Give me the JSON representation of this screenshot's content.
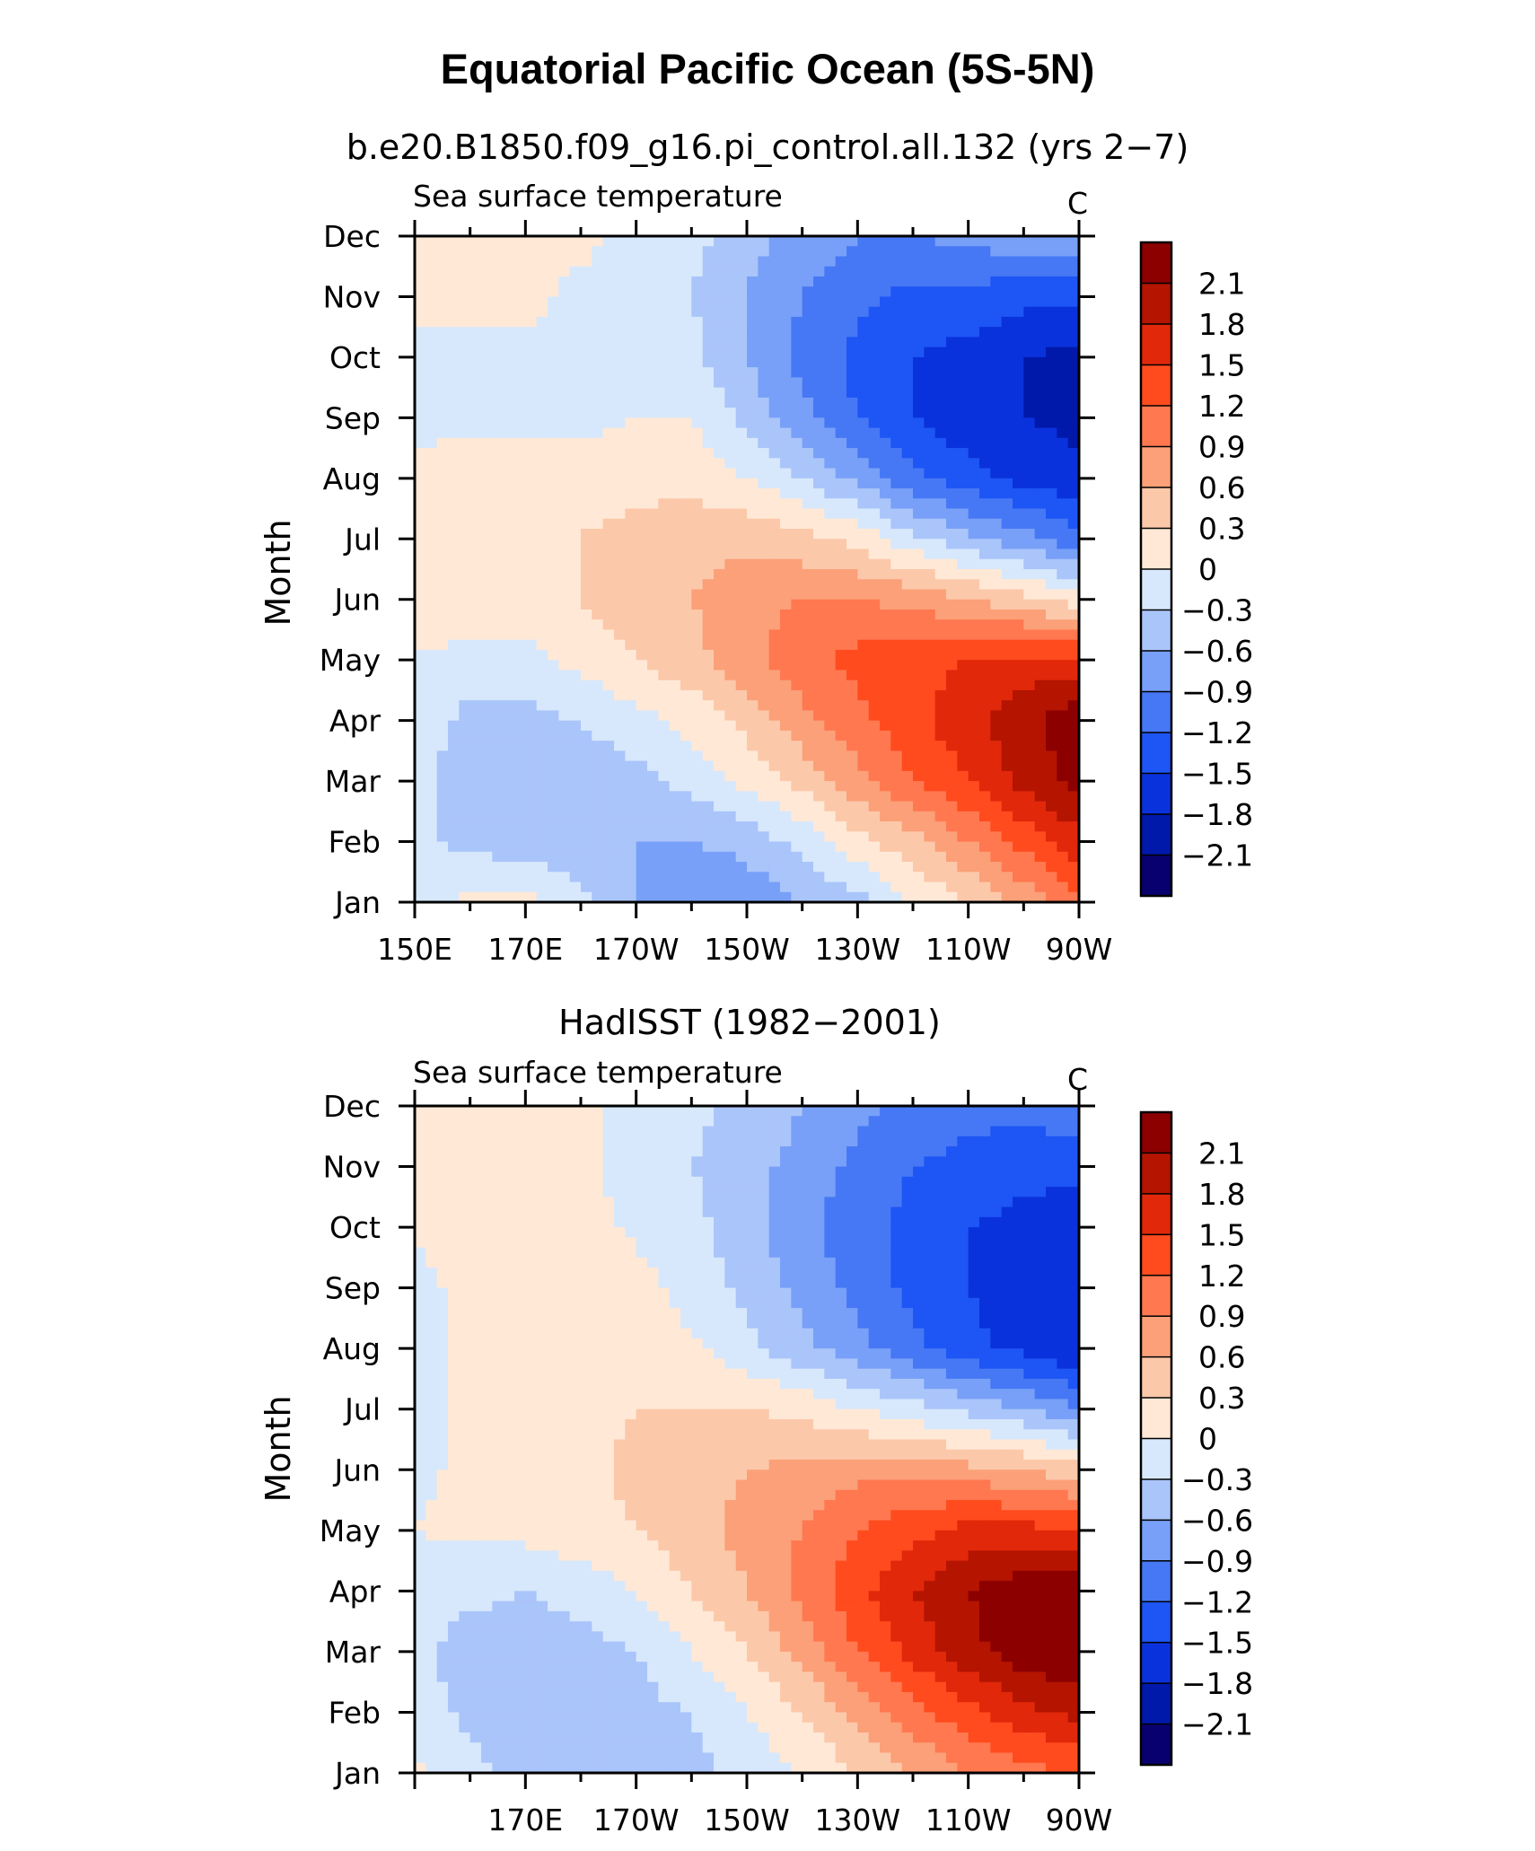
{
  "figure": {
    "main_title": "Equatorial Pacific Ocean (5S-5N)",
    "level_labels": [
      "2.1",
      "1.8",
      "1.5",
      "1.2",
      "0.9",
      "0.6",
      "0.3",
      "0",
      "−0.3",
      "−0.6",
      "−0.9",
      "−1.2",
      "−1.5",
      "−1.8",
      "−2.1"
    ],
    "palette": [
      "#08006e",
      "#0019aa",
      "#0a32dc",
      "#1e55f5",
      "#4678f5",
      "#78a0f8",
      "#aac5fa",
      "#d7e8fc",
      "#ffe8d6",
      "#fcc8aa",
      "#fba078",
      "#ff7850",
      "#ff4b1e",
      "#e1280a",
      "#b41400",
      "#8c0000"
    ]
  },
  "chart_data": [
    {
      "type": "heatmap",
      "panel": "top",
      "title": "b.e20.B1850.f09_g16.pi_control.all.132 (yrs 2−7)",
      "left_string": "Sea surface temperature",
      "right_string": "C",
      "ylabel": "Month",
      "months": [
        "Jan",
        "Feb",
        "Mar",
        "Apr",
        "May",
        "Jun",
        "Jul",
        "Aug",
        "Sep",
        "Oct",
        "Nov",
        "Dec"
      ],
      "lon_ticks": [
        "150E",
        "170E",
        "170W",
        "150W",
        "130W",
        "110W",
        "90W"
      ],
      "lon_values": [
        150,
        160,
        170,
        180,
        190,
        200,
        210,
        220,
        230,
        240,
        250,
        260,
        270
      ],
      "xlim": [
        150,
        270
      ],
      "values": [
        [
          -0.2,
          0.1,
          0.1,
          -0.2,
          -0.6,
          -0.9,
          -0.8,
          -0.6,
          -0.4,
          0.0,
          0.3,
          0.7,
          1.2
        ],
        [
          -0.2,
          -0.4,
          -0.5,
          -0.5,
          -0.6,
          -0.6,
          -0.5,
          -0.2,
          0.2,
          0.5,
          0.9,
          1.3,
          1.7
        ],
        [
          -0.2,
          -0.5,
          -0.6,
          -0.5,
          -0.4,
          -0.2,
          0.1,
          0.4,
          0.8,
          1.2,
          1.5,
          1.9,
          2.2
        ],
        [
          -0.1,
          -0.4,
          -0.4,
          -0.3,
          -0.1,
          0.1,
          0.4,
          0.8,
          1.1,
          1.4,
          1.7,
          2.0,
          2.3
        ],
        [
          0.0,
          -0.1,
          -0.1,
          0.1,
          0.3,
          0.5,
          0.8,
          1.1,
          1.3,
          1.4,
          1.5,
          1.6,
          1.6
        ],
        [
          0.1,
          0.2,
          0.2,
          0.3,
          0.5,
          0.6,
          0.8,
          0.9,
          0.9,
          0.8,
          0.6,
          0.4,
          0.1
        ],
        [
          0.2,
          0.2,
          0.2,
          0.3,
          0.4,
          0.5,
          0.5,
          0.4,
          0.2,
          -0.2,
          -0.5,
          -0.8,
          -1.1
        ],
        [
          0.1,
          0.2,
          0.2,
          0.2,
          0.2,
          0.2,
          0.0,
          -0.3,
          -0.7,
          -1.1,
          -1.4,
          -1.6,
          -1.7
        ],
        [
          -0.1,
          -0.1,
          -0.1,
          -0.1,
          0.0,
          0.0,
          -0.4,
          -0.8,
          -1.2,
          -1.5,
          -1.7,
          -1.8,
          -1.9
        ],
        [
          -0.1,
          -0.1,
          -0.1,
          -0.1,
          -0.1,
          -0.2,
          -0.6,
          -1.0,
          -1.3,
          -1.5,
          -1.6,
          -1.8,
          -1.9
        ],
        [
          0.1,
          0.1,
          0.1,
          -0.1,
          -0.2,
          -0.3,
          -0.6,
          -0.9,
          -1.1,
          -1.3,
          -1.3,
          -1.4,
          -1.4
        ],
        [
          0.1,
          0.1,
          0.1,
          0.1,
          -0.1,
          -0.2,
          -0.5,
          -0.7,
          -0.9,
          -0.9,
          -0.8,
          -0.7,
          -0.6
        ]
      ]
    },
    {
      "type": "heatmap",
      "panel": "bottom",
      "title": "HadISST (1982−2001)",
      "left_string": "Sea surface temperature",
      "right_string": "C",
      "ylabel": "Month",
      "months": [
        "Jan",
        "Feb",
        "Mar",
        "Apr",
        "May",
        "Jun",
        "Jul",
        "Aug",
        "Sep",
        "Oct",
        "Nov",
        "Dec"
      ],
      "lon_ticks": [
        "170E",
        "170W",
        "150W",
        "130W",
        "110W",
        "90W"
      ],
      "lon_values": [
        150,
        160,
        170,
        180,
        190,
        200,
        210,
        220,
        230,
        240,
        250,
        260,
        270
      ],
      "xlim": [
        150,
        270
      ],
      "values": [
        [
          0.05,
          -0.2,
          -0.4,
          -0.5,
          -0.5,
          -0.4,
          -0.2,
          0.0,
          0.3,
          0.6,
          0.9,
          1.1,
          1.2
        ],
        [
          -0.1,
          -0.4,
          -0.5,
          -0.5,
          -0.4,
          -0.3,
          0.0,
          0.3,
          0.7,
          1.1,
          1.4,
          1.7,
          1.9
        ],
        [
          -0.2,
          -0.5,
          -0.5,
          -0.4,
          -0.3,
          0.0,
          0.3,
          0.7,
          1.2,
          1.6,
          2.0,
          2.3,
          2.4
        ],
        [
          -0.1,
          -0.2,
          -0.3,
          -0.2,
          0.0,
          0.3,
          0.6,
          1.0,
          1.4,
          1.8,
          2.1,
          2.3,
          2.3
        ],
        [
          0.0,
          0.05,
          0.1,
          0.2,
          0.3,
          0.5,
          0.7,
          0.9,
          1.2,
          1.4,
          1.6,
          1.6,
          1.5
        ],
        [
          -0.05,
          0.05,
          0.1,
          0.2,
          0.4,
          0.5,
          0.6,
          0.7,
          0.8,
          0.8,
          0.7,
          0.6,
          0.4
        ],
        [
          -0.1,
          0.05,
          0.1,
          0.2,
          0.3,
          0.3,
          0.3,
          0.2,
          0.0,
          -0.2,
          -0.4,
          -0.6,
          -0.9
        ],
        [
          -0.1,
          0.05,
          0.2,
          0.2,
          0.1,
          0.05,
          -0.2,
          -0.5,
          -0.8,
          -1.1,
          -1.4,
          -1.6,
          -1.8
        ],
        [
          -0.1,
          0.1,
          0.2,
          0.2,
          0.1,
          -0.1,
          -0.4,
          -0.7,
          -1.0,
          -1.3,
          -1.5,
          -1.7,
          -1.8
        ],
        [
          0.05,
          0.1,
          0.1,
          0.1,
          -0.05,
          -0.2,
          -0.5,
          -0.8,
          -1.1,
          -1.3,
          -1.5,
          -1.6,
          -1.7
        ],
        [
          0.05,
          0.1,
          0.05,
          0.05,
          -0.1,
          -0.3,
          -0.5,
          -0.7,
          -1.0,
          -1.2,
          -1.3,
          -1.4,
          -1.4
        ],
        [
          0.1,
          0.1,
          0.1,
          0.05,
          -0.1,
          -0.2,
          -0.4,
          -0.6,
          -0.8,
          -1.0,
          -1.1,
          -1.1,
          -1.0
        ]
      ]
    }
  ]
}
